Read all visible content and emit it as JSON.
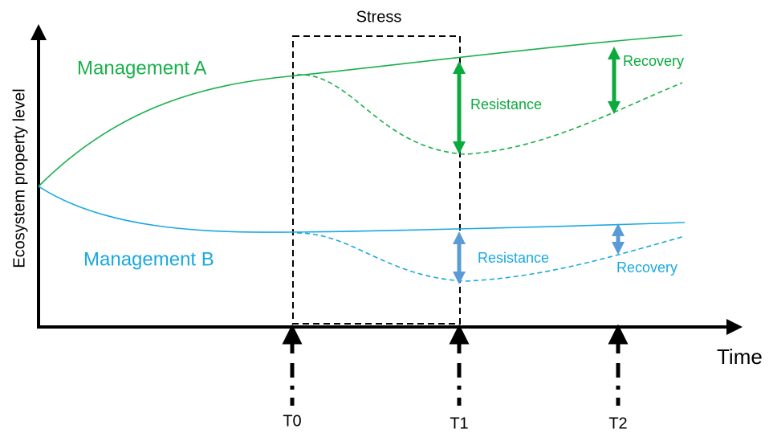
{
  "title": "Stress",
  "y_axis_label": "Ecosystem property level",
  "x_axis_label": "Time",
  "series": [
    {
      "label": "Management A",
      "resistance": "Resistance",
      "recovery": "Recovery"
    },
    {
      "label": "Management B",
      "resistance": "Resistance",
      "recovery": "Recovery"
    }
  ],
  "time_points": [
    "T0",
    "T1",
    "T2"
  ]
}
